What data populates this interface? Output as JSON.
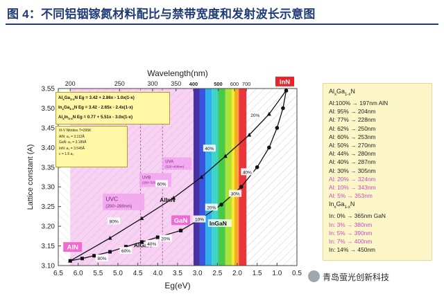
{
  "title": "图 4：不同铝铟镓氮材料配比与禁带宽度和发射波长示意图",
  "watermark": "青岛萤光创新科技",
  "colors": {
    "title": "#1f3b78",
    "curve": "#111111",
    "uv_pink": "#f4bdf0",
    "legend_bg": "#fdf6c8",
    "label_red": "#e8232a",
    "label_pink": "#f06bd1"
  },
  "chart_data": {
    "type": "line",
    "xlabel": "Eg(eV)",
    "ylabel": "Lattice constant (A)",
    "top_axis_label": "Wavelength(nm)",
    "xlim": [
      6.5,
      0.5
    ],
    "ylim": [
      3.1,
      3.55
    ],
    "x_ticks": [
      "6.5",
      "6.0",
      "5.5",
      "5.0",
      "4.5",
      "4.0",
      "3.5",
      "3.0",
      "2.5",
      "2.0",
      "1.5",
      "1.0",
      "0.5"
    ],
    "y_ticks": [
      "3.10",
      "3.15",
      "3.20",
      "3.25",
      "3.30",
      "3.35",
      "3.40",
      "3.45",
      "3.50",
      "3.55"
    ],
    "top_ticks": [
      {
        "label": "200",
        "eg": 6.2
      },
      {
        "label": "250",
        "eg": 4.96
      },
      {
        "label": "300",
        "eg": 4.13
      },
      {
        "label": "350",
        "eg": 3.54
      },
      {
        "label": "400",
        "eg": 3.1
      },
      {
        "label": "500",
        "eg": 2.48
      },
      {
        "label": "600",
        "eg": 2.07
      },
      {
        "label": "700",
        "eg": 1.77
      }
    ],
    "series": [
      {
        "name": "AlGaN",
        "marker": "square",
        "x": [
          6.2,
          5.9,
          5.6,
          5.2,
          4.8,
          4.4,
          4.0,
          3.42
        ],
        "y": [
          3.112,
          3.118,
          3.125,
          3.135,
          3.148,
          3.16,
          3.172,
          3.189
        ]
      },
      {
        "name": "AlInN",
        "marker": "triangle",
        "x": [
          6.2,
          5.2,
          4.4,
          3.6,
          2.9,
          2.3,
          1.7,
          1.2,
          0.77
        ],
        "y": [
          3.112,
          3.17,
          3.22,
          3.272,
          3.325,
          3.378,
          3.432,
          3.485,
          3.545
        ]
      },
      {
        "name": "InGaN",
        "marker": "circle",
        "x": [
          3.42,
          2.9,
          2.4,
          1.9,
          1.5,
          1.2,
          1.0,
          0.85,
          0.77
        ],
        "y": [
          3.189,
          3.22,
          3.255,
          3.3,
          3.35,
          3.4,
          3.45,
          3.5,
          3.545
        ]
      }
    ],
    "point_labels": [
      {
        "text": "AlN",
        "eg": 6.2,
        "a": 3.112,
        "color": "#f06bd1"
      },
      {
        "text": "GaN",
        "eg": 3.42,
        "a": 3.189,
        "color": "#f06bd1"
      },
      {
        "text": "InN",
        "eg": 0.77,
        "a": 3.545,
        "color": "#e8232a"
      }
    ],
    "series_labels": [
      {
        "text": "AlGaN",
        "eg": 4.6,
        "a": 3.147
      },
      {
        "text": "AlInN",
        "eg": 3.95,
        "a": 3.262
      },
      {
        "text": "InGaN",
        "eg": 2.7,
        "a": 3.202
      }
    ],
    "percent_labels": [
      {
        "text": "80%",
        "eg": 5.4,
        "a": 3.116
      },
      {
        "text": "60%",
        "eg": 4.8,
        "a": 3.135
      },
      {
        "text": "40%",
        "eg": 4.15,
        "a": 3.153
      },
      {
        "text": "20%",
        "eg": 3.8,
        "a": 3.166
      },
      {
        "text": "80%",
        "eg": 5.1,
        "a": 3.21
      },
      {
        "text": "60%",
        "eg": 3.9,
        "a": 3.305
      },
      {
        "text": "40%",
        "eg": 2.7,
        "a": 3.395
      },
      {
        "text": "20%",
        "eg": 1.55,
        "a": 3.48
      },
      {
        "text": "10%",
        "eg": 2.95,
        "a": 3.215
      },
      {
        "text": "20%",
        "eg": 2.65,
        "a": 3.245
      },
      {
        "text": "30%",
        "eg": 2.05,
        "a": 3.28
      },
      {
        "text": "40%",
        "eg": 1.75,
        "a": 3.335
      }
    ],
    "regions": [
      {
        "label": "UVC",
        "range": "(200~280nm)",
        "eg_from": 6.2,
        "eg_to": 4.43
      },
      {
        "label": "UVB",
        "range": "(280~320nm)",
        "eg_from": 4.43,
        "eg_to": 3.88
      },
      {
        "label": "UVA",
        "range": "(320~400nm)",
        "eg_from": 3.88,
        "eg_to": 3.1
      }
    ],
    "equations": [
      {
        "prefix": "Al",
        "sub1": "x",
        "mid": "Ga",
        "sub2": "1-x",
        "suffix": "N",
        "eq": "Eg = 3.42 + 2.86x - 1.0x(1-x)"
      },
      {
        "prefix": "In",
        "sub1": "x",
        "mid": "Ga",
        "sub2": "1-x",
        "suffix": "N",
        "eq": "Eg = 3.42 - 2.65x - 2.4x(1-x)"
      },
      {
        "prefix": "Al",
        "sub1": "x",
        "mid": "In",
        "sub2": "1-x",
        "suffix": "N",
        "eq": "Eg = 0.77 + 5.51x - 3.0x(1-x)"
      }
    ],
    "nitrides": {
      "heading": "III-V Nitrides  T=295K",
      "rows": [
        "AlN:  a₀ = 3.112Å",
        "GaN:  a₀ = 3.189Å",
        "InN:  a₀ = 3.545Å",
        "c = 1.6 a₀"
      ]
    }
  },
  "legend": {
    "algan_header": {
      "prefix": "Al",
      "sub": "x",
      "mid": "Ga",
      "sub2": "1-x",
      "suffix": "N"
    },
    "algan": [
      {
        "text": "Al:100% → 197nm AlN",
        "pink": false
      },
      {
        "text": "Al: 95% → 204nm",
        "pink": false
      },
      {
        "text": "Al: 77% → 228nm",
        "pink": false
      },
      {
        "text": "Al: 62% → 250nm",
        "pink": false
      },
      {
        "text": "Al: 60% → 253nm",
        "pink": false
      },
      {
        "text": "Al: 50% → 270nm",
        "pink": false
      },
      {
        "text": "Al: 44% → 280nm",
        "pink": false
      },
      {
        "text": "Al: 40% → 287nm",
        "pink": false
      },
      {
        "text": "Al: 30% → 305nm",
        "pink": false
      },
      {
        "text": "Al: 20% → 324nm",
        "pink": true
      },
      {
        "text": "Al: 10% → 343nm",
        "pink": true
      },
      {
        "text": "Al:   5% → 353nm",
        "pink": true
      }
    ],
    "ingan_header": {
      "prefix": "In",
      "sub": "x",
      "mid": "Ga",
      "sub2": "1-x",
      "suffix": "N"
    },
    "ingan": [
      {
        "text": "In:   0% → 365nm  GaN",
        "pink": false
      },
      {
        "text": "In:   3% → 380nm",
        "pink": true
      },
      {
        "text": "In:   5% → 390nm",
        "pink": true
      },
      {
        "text": "In:   7% → 400nm",
        "pink": true
      },
      {
        "text": "In:  14% → 450nm",
        "pink": false
      }
    ]
  }
}
